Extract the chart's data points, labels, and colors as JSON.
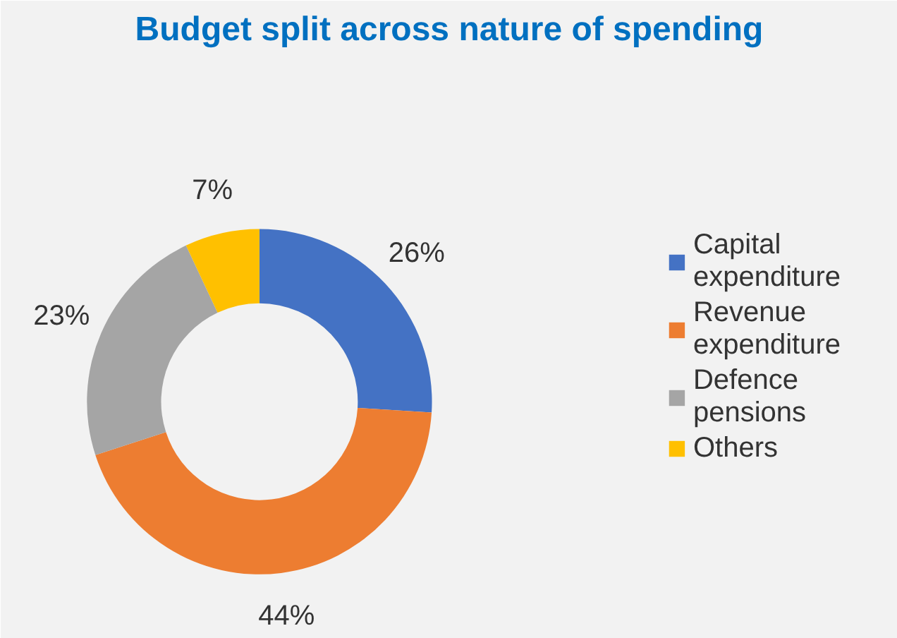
{
  "chart_data": {
    "type": "donut",
    "title": "Budget split across nature of spending",
    "categories": [
      "Capital expenditure",
      "Revenue expenditure",
      "Defence pensions",
      "Others"
    ],
    "values": [
      26,
      44,
      23,
      7
    ],
    "colors": [
      "#4472c4",
      "#ed7d31",
      "#a5a5a5",
      "#ffc000"
    ],
    "value_labels": [
      "26%",
      "44%",
      "23%",
      "7%"
    ],
    "legend": "right"
  }
}
